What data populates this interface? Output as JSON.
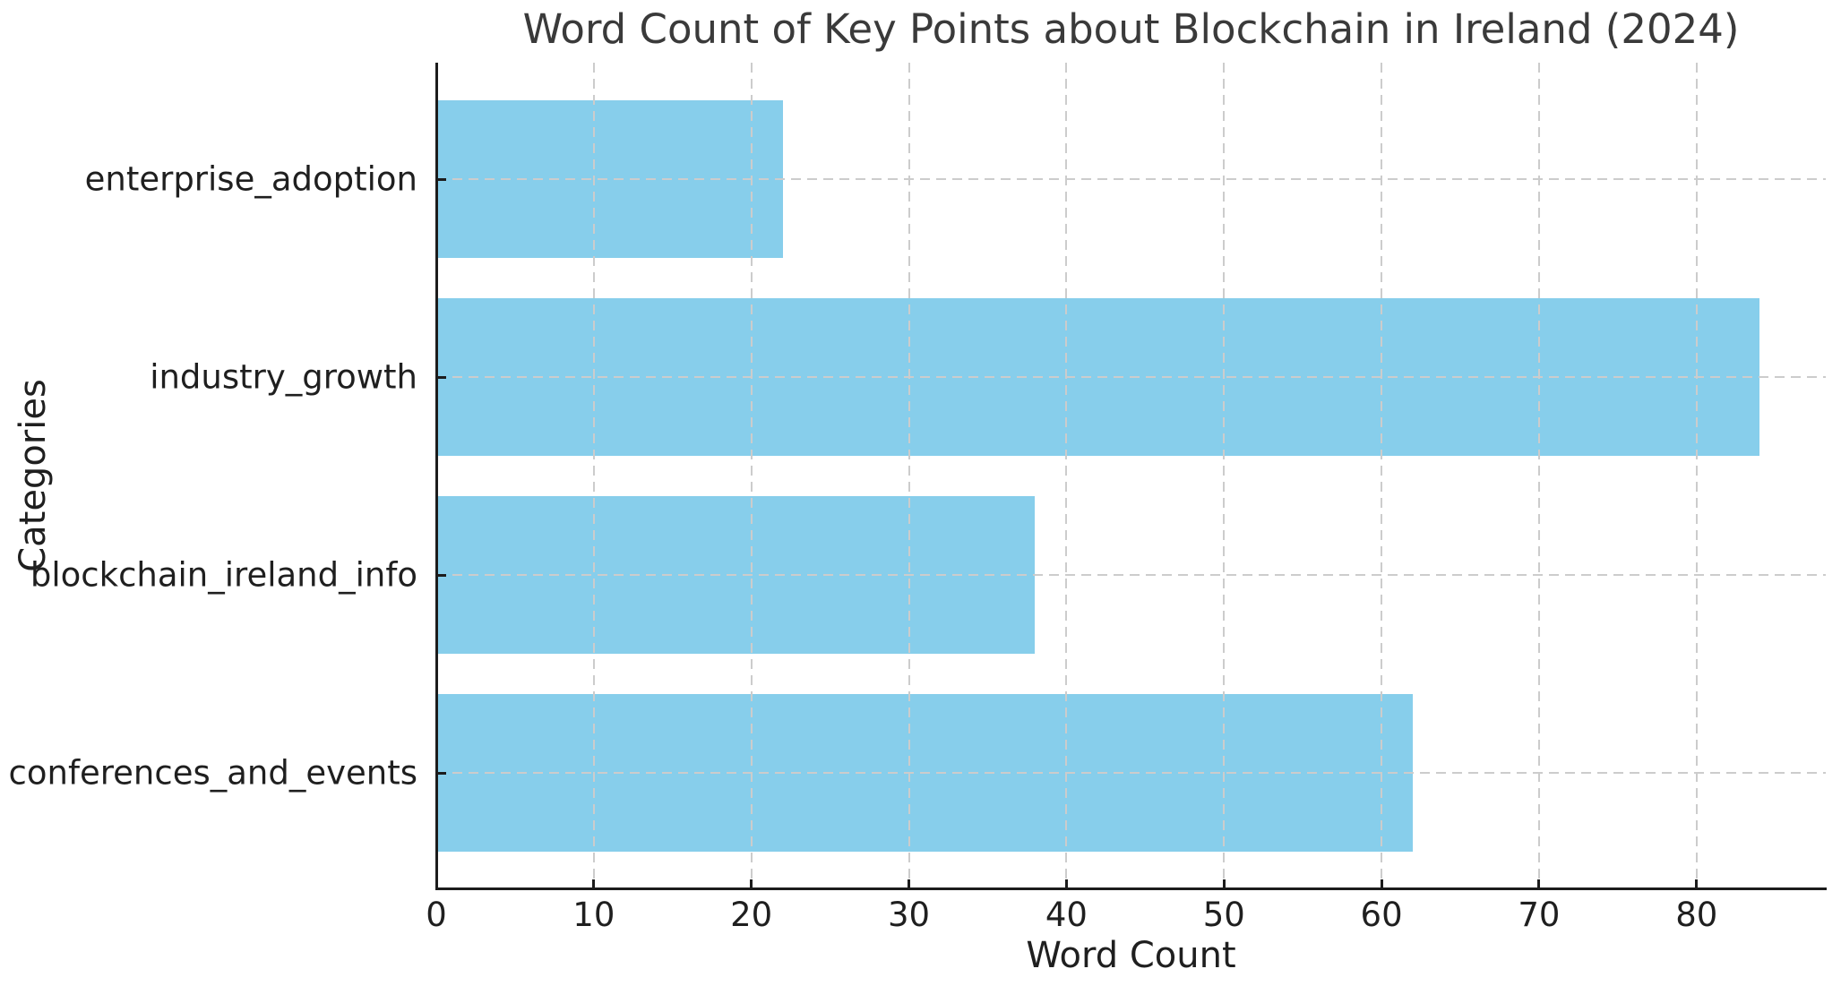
{
  "chart_data": {
    "type": "bar",
    "orientation": "horizontal",
    "title": "Word Count of Key Points about Blockchain in Ireland (2024)",
    "xlabel": "Word Count",
    "ylabel": "Categories",
    "categories": [
      "enterprise_adoption",
      "industry_growth",
      "blockchain_ireland_info",
      "conferences_and_events"
    ],
    "values": [
      22,
      84,
      38,
      62
    ],
    "xticks": [
      0,
      10,
      20,
      30,
      40,
      50,
      60,
      70,
      80
    ],
    "xlim": [
      0,
      88.2
    ],
    "grid": "dashed, horizontal and vertical, drawn above bars",
    "legend": "none",
    "colors": {
      "bar": "#87CEEB",
      "grid": "#cccccc",
      "spine": "#1c1c1c",
      "tick_text": "#1f1f1f",
      "title_text": "#3a3a3a",
      "background": "#ffffff"
    }
  }
}
